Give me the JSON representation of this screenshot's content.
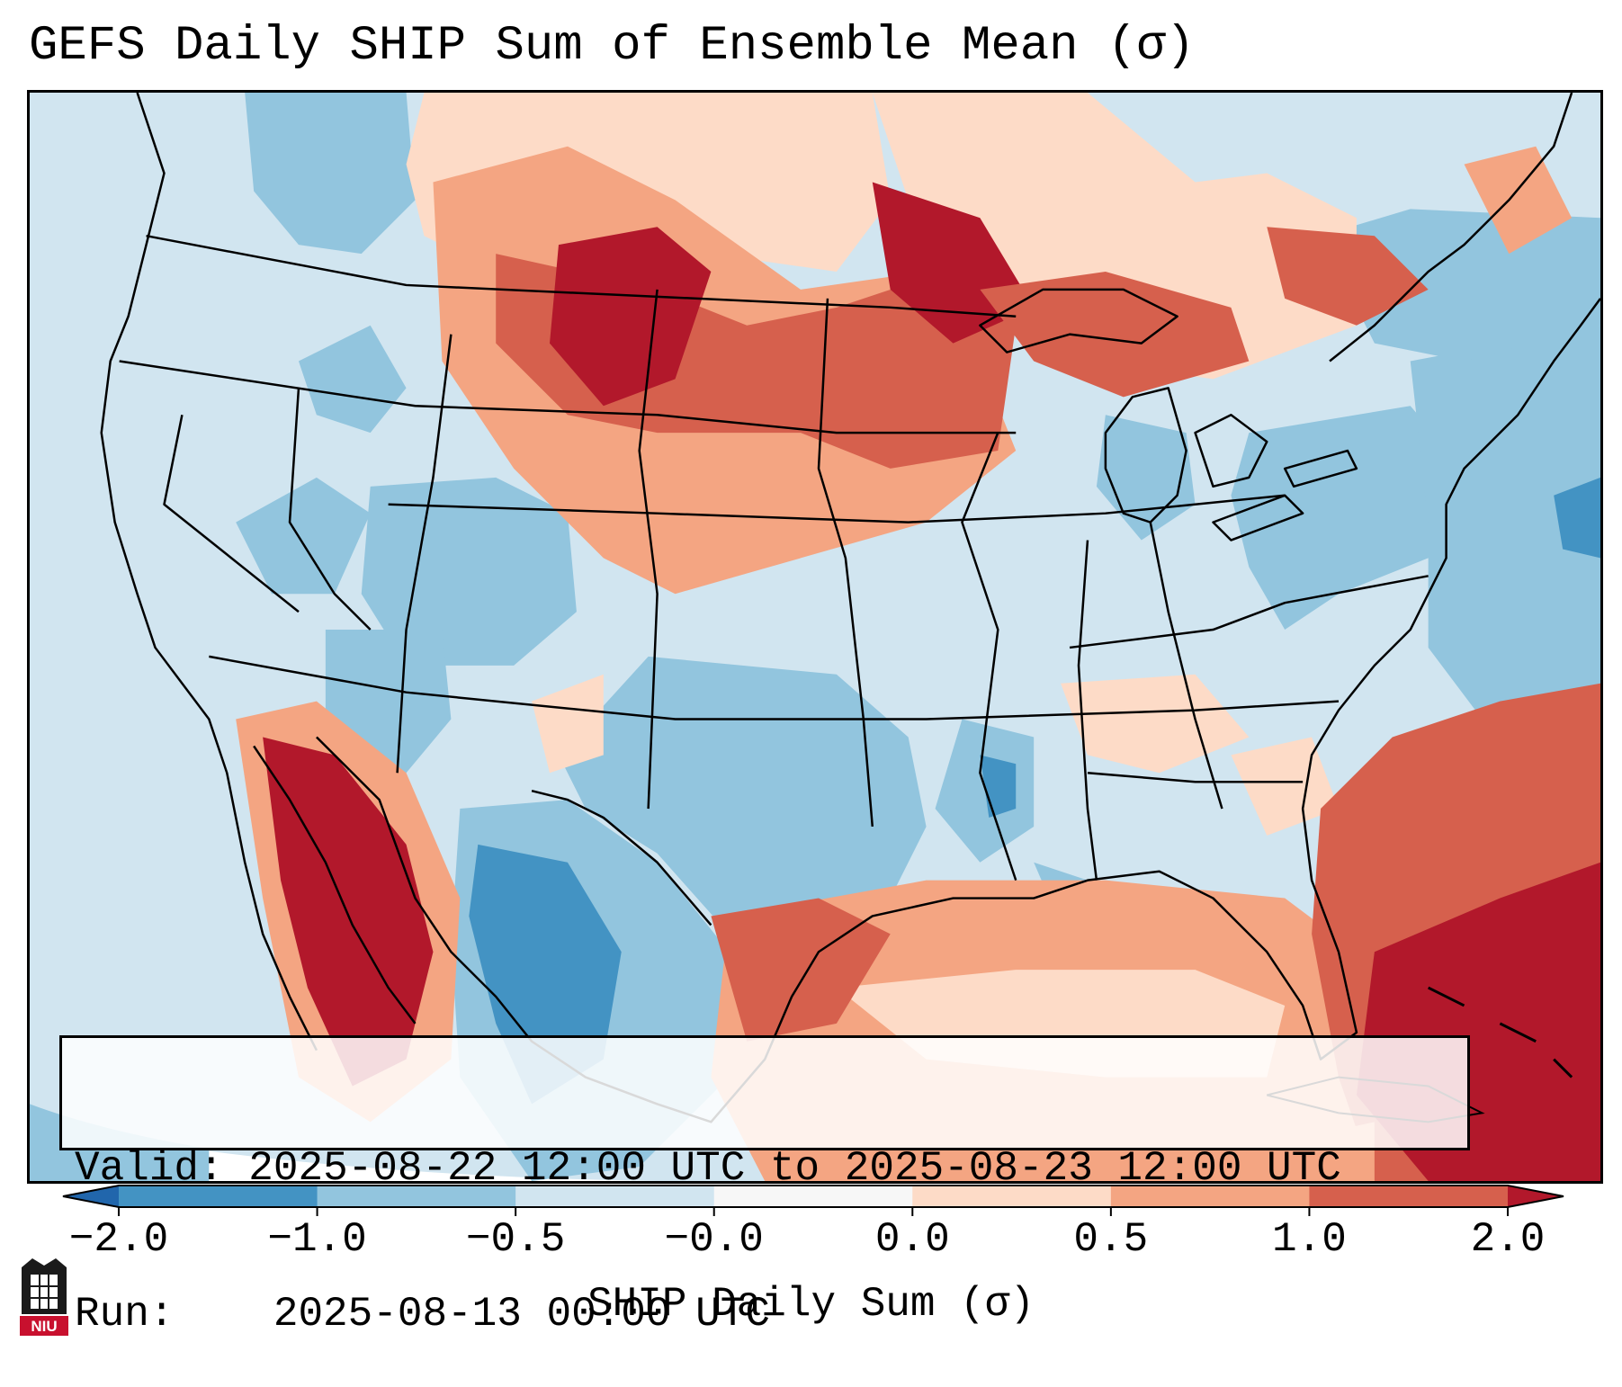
{
  "title": "GEFS Daily SHIP Sum of Ensemble Mean (σ)",
  "info": {
    "valid_label": "Valid:",
    "valid_value": "2025-08-22 12:00 UTC to 2025-08-23 12:00 UTC",
    "run_label": "Run:",
    "run_value": "2025-08-13 00:00 UTC"
  },
  "colorbar": {
    "label": "SHIP Daily Sum (σ)",
    "ticks": [
      "−2.0",
      "−1.0",
      "−0.5",
      "−0.0",
      "0.0",
      "0.5",
      "1.0",
      "2.0"
    ],
    "bin_colors": [
      "#2166ac",
      "#4393c3",
      "#92c5de",
      "#d1e5f0",
      "#f7f7f7",
      "#fddbc7",
      "#f4a582",
      "#d6604d",
      "#b2182b"
    ]
  },
  "legend_colors": {
    "strong_negative": "#4393c3",
    "negative": "#92c5de",
    "weak_negative": "#d1e5f0",
    "weak_positive": "#fddbc7",
    "positive": "#f4a582",
    "strong_positive": "#d6604d",
    "extreme_positive": "#b2182b"
  },
  "logo": {
    "text": "NIU",
    "color": "#c8102e"
  }
}
